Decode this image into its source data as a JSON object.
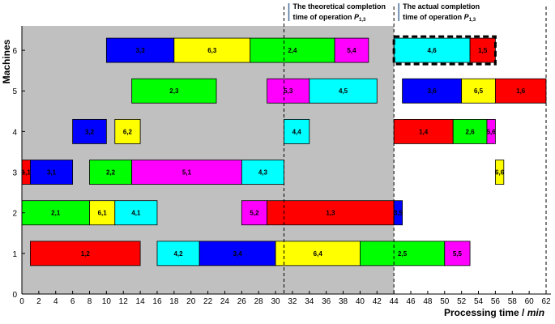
{
  "chart_data": {
    "type": "gantt",
    "ylabel": "Machines",
    "xlabel": "Processing time / ",
    "xlabel_unit": "min",
    "xlim": [
      0,
      62
    ],
    "ylim": [
      0,
      6.6
    ],
    "x_ticks": [
      0,
      2,
      4,
      6,
      8,
      10,
      12,
      14,
      16,
      18,
      20,
      22,
      24,
      26,
      28,
      30,
      32,
      34,
      36,
      38,
      40,
      42,
      44,
      46,
      48,
      50,
      52,
      54,
      56,
      58,
      60,
      62
    ],
    "y_ticks": [
      0,
      1,
      2,
      3,
      4,
      5,
      6
    ],
    "shaded_until": 44,
    "colors": {
      "red": "#ff0000",
      "blue": "#0000ff",
      "yellow": "#ffff00",
      "green": "#00ff00",
      "magenta": "#ff00ff",
      "cyan": "#00ffff",
      "shade": "#c0c0c0"
    },
    "tasks": [
      {
        "machine": 6,
        "start": 10,
        "end": 18,
        "label": "3,3",
        "color": "blue"
      },
      {
        "machine": 6,
        "start": 18,
        "end": 27,
        "label": "6,3",
        "color": "yellow"
      },
      {
        "machine": 6,
        "start": 27,
        "end": 37,
        "label": "2,4",
        "color": "green"
      },
      {
        "machine": 6,
        "start": 37,
        "end": 41,
        "label": "5,4",
        "color": "magenta"
      },
      {
        "machine": 6,
        "start": 44,
        "end": 53,
        "label": "4,6",
        "color": "cyan"
      },
      {
        "machine": 6,
        "start": 53,
        "end": 56,
        "label": "1,5",
        "color": "red"
      },
      {
        "machine": 5,
        "start": 13,
        "end": 23,
        "label": "2,3",
        "color": "green"
      },
      {
        "machine": 5,
        "start": 29,
        "end": 34,
        "label": "5,3",
        "color": "magenta"
      },
      {
        "machine": 5,
        "start": 34,
        "end": 42,
        "label": "4,5",
        "color": "cyan"
      },
      {
        "machine": 5,
        "start": 45,
        "end": 52,
        "label": "3,6",
        "color": "blue"
      },
      {
        "machine": 5,
        "start": 52,
        "end": 56,
        "label": "6,5",
        "color": "yellow"
      },
      {
        "machine": 5,
        "start": 56,
        "end": 62,
        "label": "1,6",
        "color": "red"
      },
      {
        "machine": 4,
        "start": 6,
        "end": 10,
        "label": "3,2",
        "color": "blue"
      },
      {
        "machine": 4,
        "start": 11,
        "end": 14,
        "label": "6,2",
        "color": "yellow"
      },
      {
        "machine": 4,
        "start": 31,
        "end": 34,
        "label": "4,4",
        "color": "cyan"
      },
      {
        "machine": 4,
        "start": 44,
        "end": 51,
        "label": "1,4",
        "color": "red"
      },
      {
        "machine": 4,
        "start": 51,
        "end": 55,
        "label": "2,6",
        "color": "green"
      },
      {
        "machine": 4,
        "start": 55,
        "end": 56,
        "label": "5,6",
        "color": "magenta"
      },
      {
        "machine": 3,
        "start": 0,
        "end": 1,
        "label": "1,1",
        "color": "red"
      },
      {
        "machine": 3,
        "start": 1,
        "end": 6,
        "label": "3,1",
        "color": "blue"
      },
      {
        "machine": 3,
        "start": 8,
        "end": 13,
        "label": "2,2",
        "color": "green"
      },
      {
        "machine": 3,
        "start": 13,
        "end": 26,
        "label": "5,1",
        "color": "magenta"
      },
      {
        "machine": 3,
        "start": 26,
        "end": 31,
        "label": "4,3",
        "color": "cyan"
      },
      {
        "machine": 3,
        "start": 56,
        "end": 57,
        "label": "6,6",
        "color": "yellow"
      },
      {
        "machine": 2,
        "start": 0,
        "end": 8,
        "label": "2,1",
        "color": "green"
      },
      {
        "machine": 2,
        "start": 8,
        "end": 11,
        "label": "6,1",
        "color": "yellow"
      },
      {
        "machine": 2,
        "start": 11,
        "end": 16,
        "label": "4,1",
        "color": "cyan"
      },
      {
        "machine": 2,
        "start": 26,
        "end": 29,
        "label": "5,2",
        "color": "magenta"
      },
      {
        "machine": 2,
        "start": 29,
        "end": 44,
        "label": "1,3",
        "color": "red"
      },
      {
        "machine": 2,
        "start": 44,
        "end": 45,
        "label": "3,5",
        "color": "blue"
      },
      {
        "machine": 1,
        "start": 1,
        "end": 14,
        "label": "1,2",
        "color": "red"
      },
      {
        "machine": 1,
        "start": 16,
        "end": 21,
        "label": "4,2",
        "color": "cyan"
      },
      {
        "machine": 1,
        "start": 21,
        "end": 30,
        "label": "3,4",
        "color": "blue"
      },
      {
        "machine": 1,
        "start": 30,
        "end": 40,
        "label": "6,4",
        "color": "yellow"
      },
      {
        "machine": 1,
        "start": 40,
        "end": 50,
        "label": "2,5",
        "color": "green"
      },
      {
        "machine": 1,
        "start": 50,
        "end": 53,
        "label": "5,5",
        "color": "magenta"
      }
    ],
    "highlight_box": {
      "machine": 6,
      "start": 44,
      "end": 56
    },
    "vlines": [
      31,
      44,
      62
    ],
    "annotations": [
      {
        "line1": "The theoretical completion",
        "line2": "time of operation ",
        "sym": "P",
        "sub": "1,3",
        "x": 31
      },
      {
        "line1": "The actual completion",
        "line2": "time of operation ",
        "sym": "P",
        "sub": "1,3",
        "x": 44
      }
    ]
  }
}
